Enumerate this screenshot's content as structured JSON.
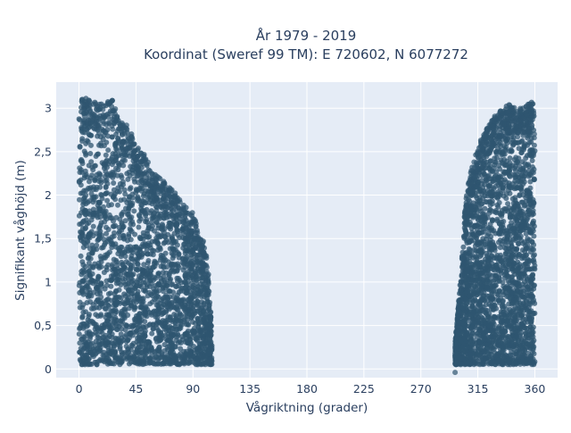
{
  "chart_data": {
    "type": "scatter",
    "title_lines": [
      "År 1979 - 2019",
      "Koordinat (Sweref 99 TM): E 720602, N 6077272"
    ],
    "xlabel": "Vågriktning (grader)",
    "ylabel": "Signifikant våghöjd (m)",
    "xlim": [
      -18,
      378
    ],
    "ylim": [
      -0.1,
      3.3
    ],
    "x_ticks": [
      {
        "value": 0,
        "label": "0"
      },
      {
        "value": 45,
        "label": "45"
      },
      {
        "value": 90,
        "label": "90"
      },
      {
        "value": 135,
        "label": "135"
      },
      {
        "value": 180,
        "label": "180"
      },
      {
        "value": 225,
        "label": "225"
      },
      {
        "value": 270,
        "label": "270"
      },
      {
        "value": 315,
        "label": "315"
      },
      {
        "value": 360,
        "label": "360"
      }
    ],
    "y_ticks": [
      {
        "value": 0,
        "label": "0"
      },
      {
        "value": 0.5,
        "label": "0,5"
      },
      {
        "value": 1,
        "label": "1"
      },
      {
        "value": 1.5,
        "label": "1,5"
      },
      {
        "value": 2,
        "label": "2"
      },
      {
        "value": 2.5,
        "label": "2,5"
      },
      {
        "value": 3,
        "label": "3"
      }
    ],
    "grid": true,
    "marker_color": "#2f5670",
    "background_color": "#e5ecf6",
    "clusters": [
      {
        "direction_range": [
          0,
          105
        ],
        "height_range": [
          0.05,
          3.2
        ],
        "envelope": [
          [
            0,
            3.1
          ],
          [
            5,
            3.12
          ],
          [
            10,
            3.1
          ],
          [
            15,
            3.05
          ],
          [
            20,
            3.05
          ],
          [
            25,
            3.15
          ],
          [
            30,
            2.95
          ],
          [
            35,
            2.85
          ],
          [
            40,
            2.8
          ],
          [
            45,
            2.6
          ],
          [
            50,
            2.5
          ],
          [
            55,
            2.4
          ],
          [
            60,
            2.25
          ],
          [
            65,
            2.2
          ],
          [
            70,
            2.1
          ],
          [
            75,
            2.05
          ],
          [
            80,
            1.95
          ],
          [
            85,
            1.85
          ],
          [
            90,
            1.8
          ],
          [
            95,
            1.6
          ],
          [
            100,
            1.4
          ],
          [
            103,
            1.0
          ],
          [
            105,
            0.4
          ]
        ]
      },
      {
        "direction_range": [
          297,
          360
        ],
        "height_range": [
          0.05,
          3.1
        ],
        "envelope": [
          [
            297,
            0.3
          ],
          [
            300,
            0.8
          ],
          [
            303,
            1.4
          ],
          [
            305,
            1.9
          ],
          [
            308,
            2.2
          ],
          [
            312,
            2.4
          ],
          [
            316,
            2.6
          ],
          [
            320,
            2.7
          ],
          [
            325,
            2.85
          ],
          [
            330,
            2.95
          ],
          [
            335,
            3.0
          ],
          [
            340,
            3.05
          ],
          [
            345,
            3.0
          ],
          [
            350,
            3.0
          ],
          [
            355,
            3.05
          ],
          [
            358,
            3.1
          ],
          [
            360,
            2.9
          ]
        ]
      }
    ]
  }
}
